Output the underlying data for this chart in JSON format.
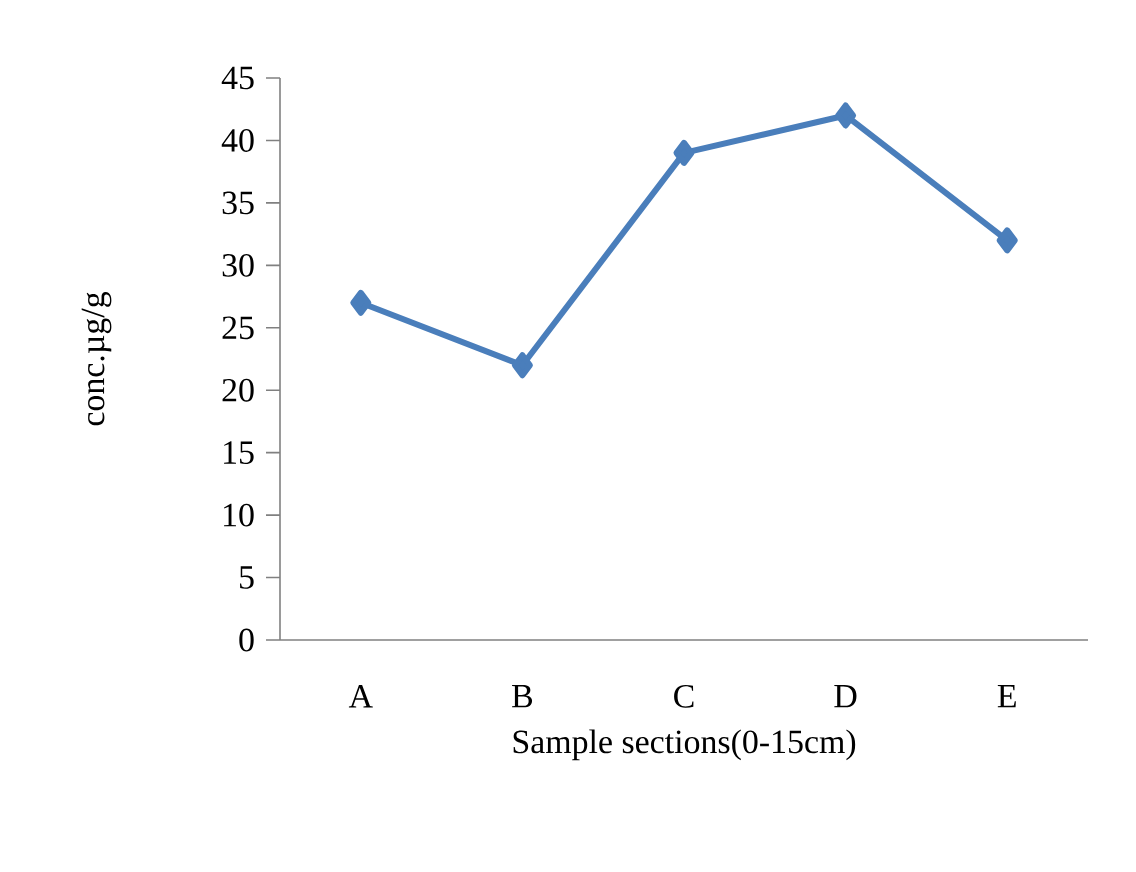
{
  "chart_data": {
    "type": "line",
    "xlabel": "Sample sections(0-15cm)",
    "ylabel": "conc.µg/g",
    "categories": [
      "A",
      "B",
      "C",
      "D",
      "E"
    ],
    "series": [
      {
        "color": "#4a7ebb",
        "values": [
          27,
          22,
          39,
          42,
          32
        ]
      }
    ],
    "ylim": [
      0,
      45
    ],
    "yticks": [
      0,
      5,
      10,
      15,
      20,
      25,
      30,
      35,
      40,
      45
    ],
    "marker": "diamond",
    "grid": false
  }
}
